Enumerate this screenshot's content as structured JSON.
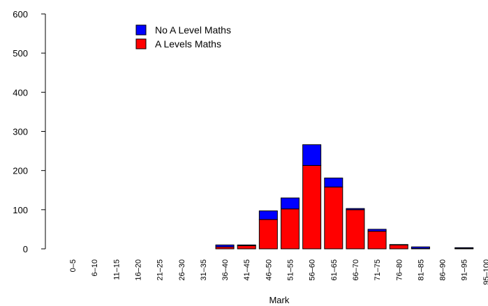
{
  "chart_data": {
    "type": "bar",
    "stacked": true,
    "xlabel": "Mark",
    "ylabel": "",
    "ylim": [
      0,
      600
    ],
    "yticks": [
      "0",
      "100",
      "200",
      "300",
      "400",
      "500",
      "600"
    ],
    "categories": [
      "0–5",
      "6–10",
      "11–15",
      "16–20",
      "21–25",
      "26–30",
      "31–35",
      "36–40",
      "41–45",
      "46–50",
      "51–55",
      "56–60",
      "61–65",
      "66–70",
      "71–75",
      "76–80",
      "81–85",
      "86–90",
      "91–95",
      "95–100"
    ],
    "series": [
      {
        "name": "A Levels Maths",
        "color": "#ff0000",
        "values": [
          0,
          0,
          0,
          0,
          0,
          0,
          0,
          5,
          8,
          75,
          102,
          213,
          158,
          100,
          45,
          10,
          1,
          0,
          1,
          0
        ]
      },
      {
        "name": "No A Level Maths",
        "color": "#0000ff",
        "values": [
          0,
          0,
          0,
          0,
          0,
          0,
          0,
          5,
          2,
          22,
          28,
          53,
          23,
          3,
          5,
          1,
          4,
          0,
          2,
          0
        ]
      }
    ],
    "legend": {
      "position": "top-left",
      "order": [
        "No A Level Maths",
        "A Levels Maths"
      ]
    },
    "grid": false
  }
}
